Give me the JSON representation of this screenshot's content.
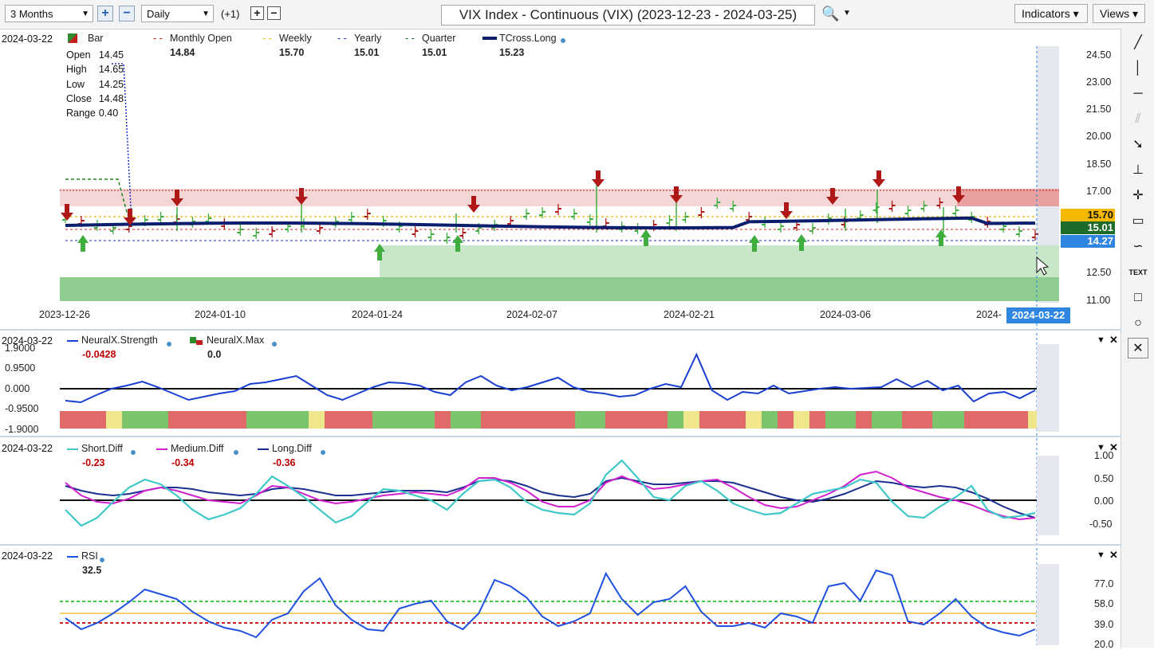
{
  "toolbar": {
    "period": "3 Months",
    "interval": "Daily",
    "offset": "(+1)",
    "title": "VIX Index - Continuous (VIX) (2023-12-23 - 2024-03-25)",
    "indicators": "Indicators",
    "views": "Views"
  },
  "price_panel": {
    "date": "2024-03-22",
    "legend": [
      {
        "label": "Bar",
        "value": "",
        "color": "#2e8b2e"
      },
      {
        "label": "Monthly Open",
        "value": "14.84",
        "color": "#d02020"
      },
      {
        "label": "Weekly",
        "value": "15.70",
        "color": "#e6b800"
      },
      {
        "label": "Yearly",
        "value": "15.01",
        "color": "#2030c0"
      },
      {
        "label": "Quarter",
        "value": "15.01",
        "color": "#206020"
      },
      {
        "label": "TCross.Long",
        "value": "15.23",
        "color": "#0a1e6e"
      }
    ],
    "ohlc": [
      {
        "k": "Open",
        "v": "14.45"
      },
      {
        "k": "High",
        "v": "14.65"
      },
      {
        "k": "Low",
        "v": "14.25"
      },
      {
        "k": "Close",
        "v": "14.48"
      },
      {
        "k": "Range",
        "v": "0.40"
      }
    ],
    "y_ticks": [
      "24.50",
      "23.00",
      "21.50",
      "20.00",
      "18.50",
      "17.00",
      "12.50",
      "11.00"
    ],
    "x_ticks": [
      "2023-12-26",
      "2024-01-10",
      "2024-01-24",
      "2024-02-07",
      "2024-02-21",
      "2024-03-06",
      "2024-"
    ],
    "cursor_date": "2024-03-22",
    "price_tags": [
      {
        "v": "15.70",
        "color": "#f5b800",
        "text_color": "#111"
      },
      {
        "v": "15.01",
        "color": "#1f6b2a",
        "text_color": "#fff"
      },
      {
        "v": "14.27",
        "color": "#2f86e0",
        "text_color": "#fff"
      }
    ]
  },
  "neural_panel": {
    "date": "2024-03-22",
    "legend": [
      {
        "label": "NeuralX.Strength",
        "value": "-0.0428",
        "color": "#1a3fd0",
        "red": true
      },
      {
        "label": "NeuralX.Max",
        "value": "0.0",
        "color": "#2e8b2e",
        "red": false
      }
    ],
    "y_ticks": [
      "1.9000",
      "0.9500",
      "0.000",
      "-0.9500",
      "-1.9000"
    ]
  },
  "diff_panel": {
    "date": "2024-03-22",
    "legend": [
      {
        "label": "Short.Diff",
        "value": "-0.23",
        "color": "#40c8c8"
      },
      {
        "label": "Medium.Diff",
        "value": "-0.34",
        "color": "#d020d0"
      },
      {
        "label": "Long.Diff",
        "value": "-0.36",
        "color": "#1a3090"
      }
    ],
    "y_ticks": [
      "1.00",
      "0.50",
      "0.00",
      "-0.50"
    ]
  },
  "rsi_panel": {
    "date": "2024-03-22",
    "legend": [
      {
        "label": "RSI",
        "value": "32.5",
        "color": "#2050e0"
      }
    ],
    "y_ticks": [
      "77.0",
      "58.0",
      "39.0",
      "20.0"
    ]
  },
  "colors": {
    "up": "#3fae3f",
    "down": "#b01818",
    "zone_green": "#8fcc8f",
    "zone_red": "#e8a0a0"
  }
}
